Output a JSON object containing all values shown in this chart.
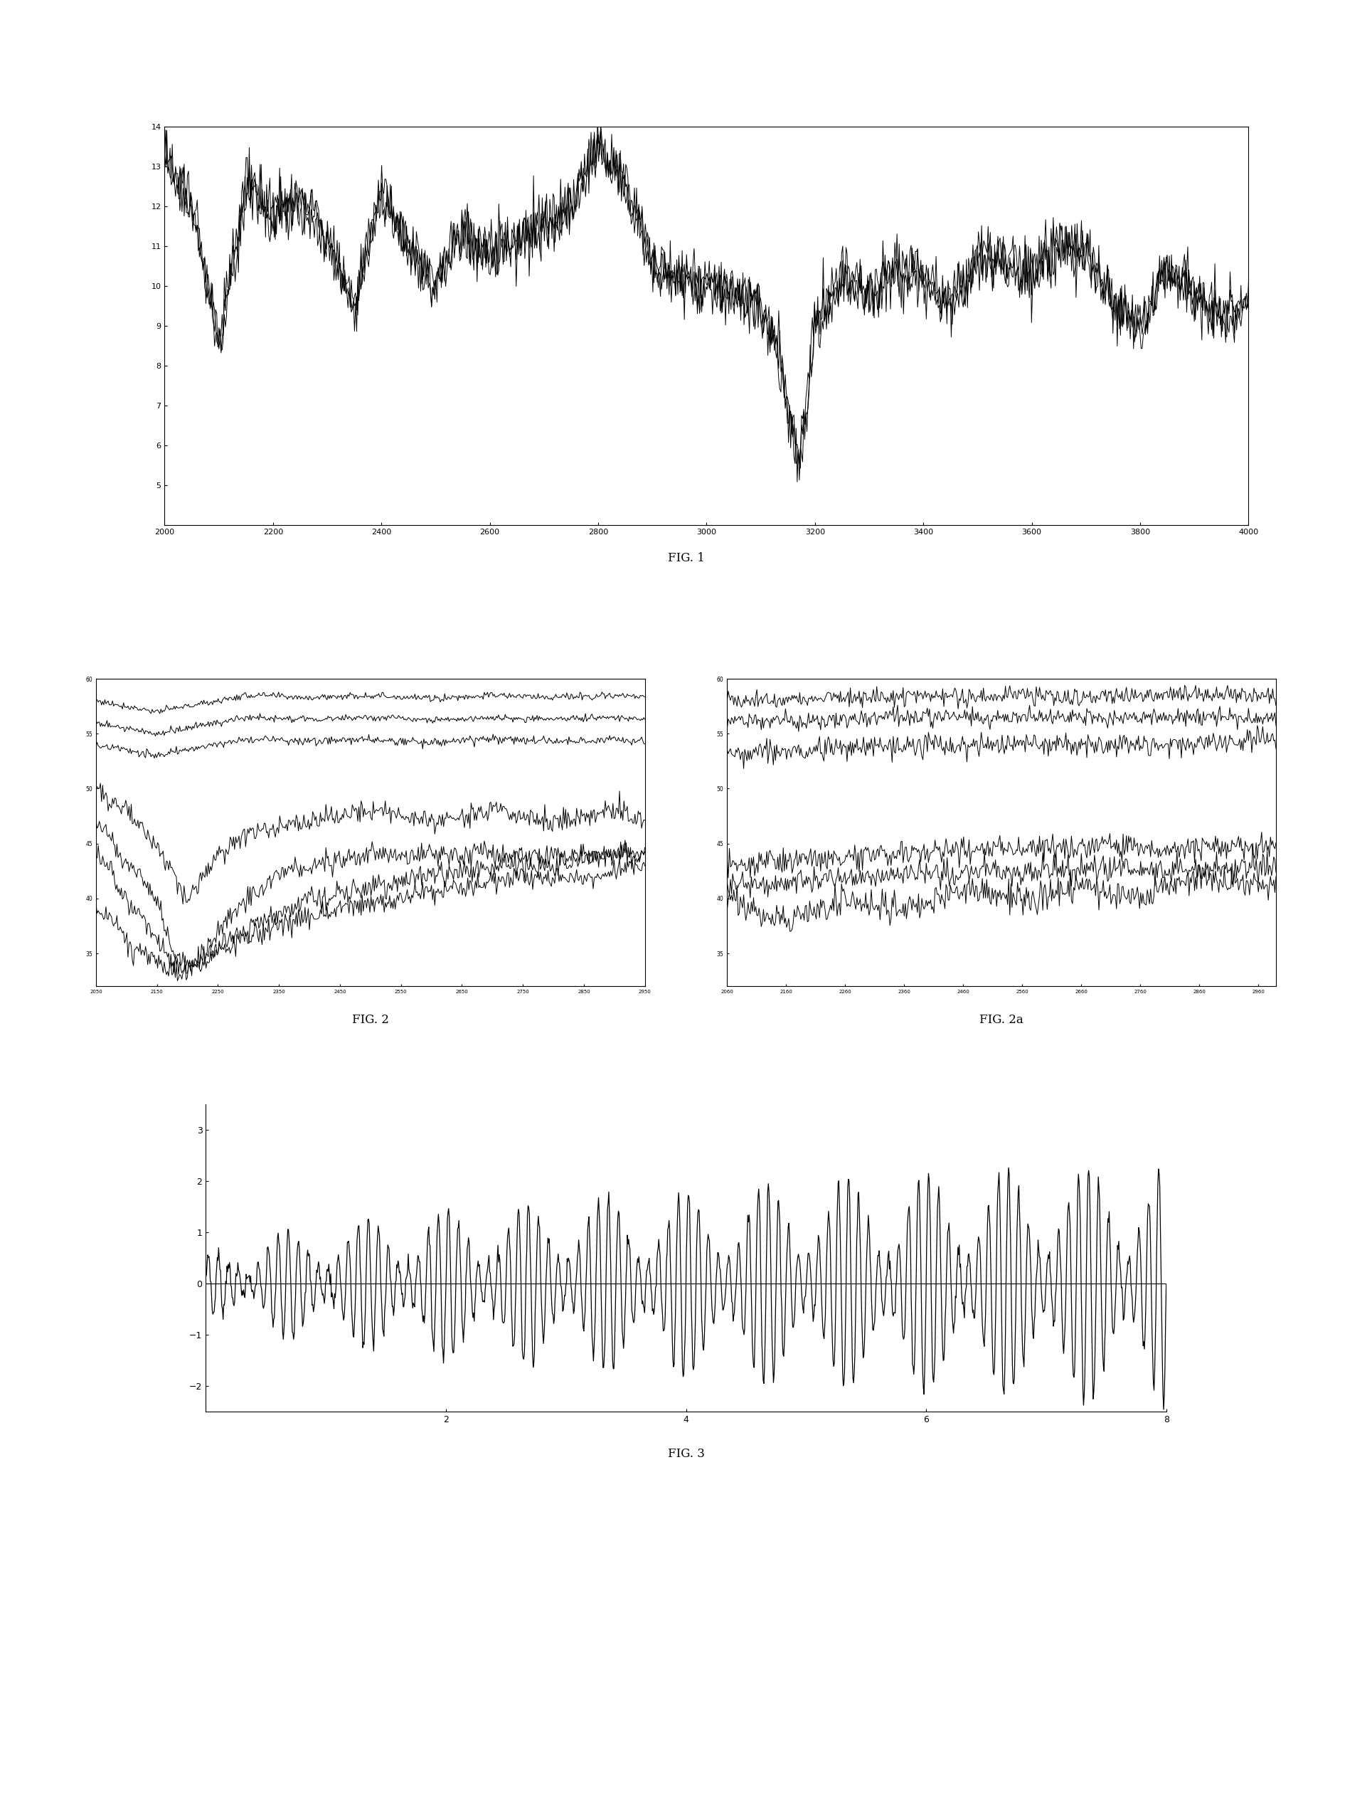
{
  "fig1": {
    "xlim": [
      2000,
      4000
    ],
    "ylim": [
      4,
      14
    ],
    "xticks": [
      2000,
      2200,
      2400,
      2600,
      2800,
      3000,
      3200,
      3400,
      3600,
      3800,
      4000
    ],
    "yticks": [
      5,
      6,
      7,
      8,
      9,
      10,
      11,
      12,
      13,
      14
    ],
    "n_lines": 3
  },
  "fig2": {
    "xlim": [
      2050,
      2950
    ],
    "ylim": [
      32,
      60
    ],
    "xticks": [
      2050,
      2150,
      2250,
      2350,
      2450,
      2550,
      2650,
      2750,
      2850,
      2950
    ],
    "yticks": [
      35,
      40,
      45,
      50,
      55,
      60
    ]
  },
  "fig2a": {
    "xlim": [
      2060,
      2990
    ],
    "ylim": [
      32,
      60
    ],
    "xticks": [
      2060,
      2160,
      2260,
      2360,
      2460,
      2560,
      2660,
      2760,
      2860,
      2960
    ],
    "yticks": [
      35,
      40,
      45,
      50,
      55,
      60
    ]
  },
  "fig3": {
    "xlim": [
      0,
      8
    ],
    "ylim": [
      -2.5,
      3.5
    ],
    "xticks": [
      2,
      4,
      6,
      8
    ],
    "yticks": [
      -2,
      -1,
      0,
      1,
      2,
      3
    ]
  },
  "background_color": "#ffffff",
  "line_color": "#000000",
  "fig1_label": "FIG. 1",
  "fig2_label": "FIG. 2",
  "fig2a_label": "FIG. 2a",
  "fig3_label": "FIG. 3"
}
